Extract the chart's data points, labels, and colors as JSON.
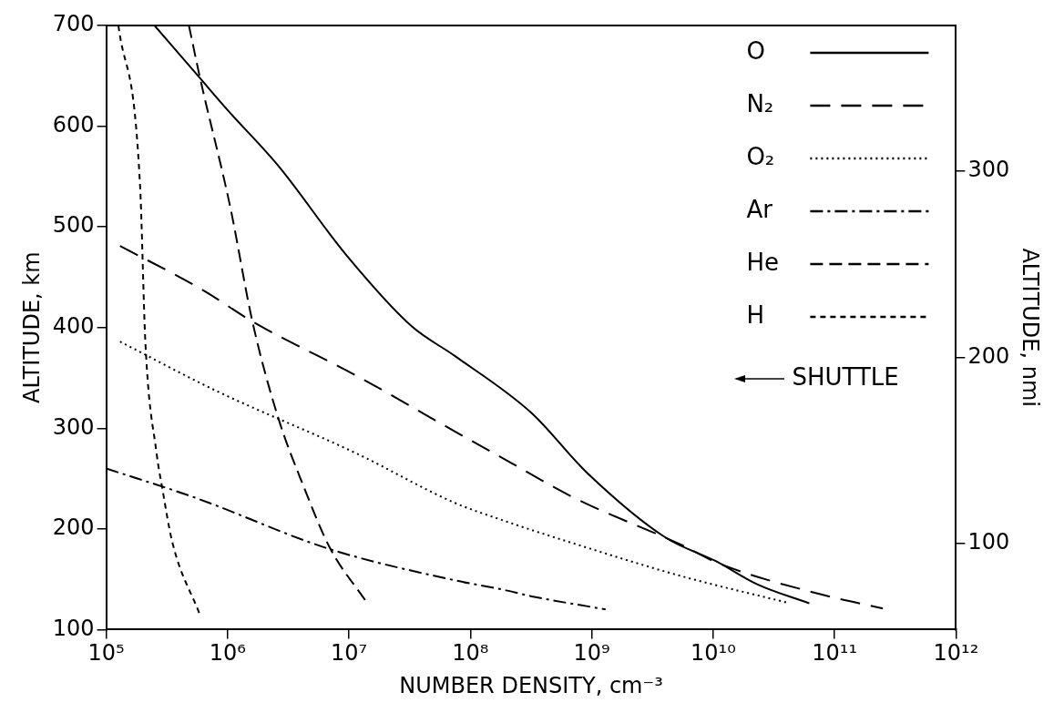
{
  "chart_data": {
    "type": "line",
    "xlabel": "NUMBER DENSITY, cm⁻³",
    "ylabel": "ALTITUDE, km",
    "y2label": "ALTITUDE, nmi",
    "log": "x",
    "grid": false,
    "legend": "top right",
    "marker": "none",
    "xlim": [
      100000,
      1000000000000
    ],
    "xticks": [
      {
        "value": 100000,
        "label": "10⁵"
      },
      {
        "value": 1000000,
        "label": "10⁶"
      },
      {
        "value": 10000000,
        "label": "10⁷"
      },
      {
        "value": 100000000,
        "label": "10⁸"
      },
      {
        "value": 1000000000,
        "label": "10⁹"
      },
      {
        "value": 10000000000,
        "label": "10¹⁰"
      },
      {
        "value": 100000000000,
        "label": "10¹¹"
      },
      {
        "value": 1000000000000,
        "label": "10¹²"
      }
    ],
    "ylim": [
      100,
      700
    ],
    "yticks": [
      100,
      200,
      300,
      400,
      500,
      600,
      700
    ],
    "y2lim": [
      54,
      378
    ],
    "y2ticks": [
      100,
      200,
      300
    ],
    "series": [
      {
        "name": "O",
        "color": "#000000",
        "line_style": "solid",
        "x": [
          250000,
          580000,
          1000000,
          2600000,
          9500000,
          33000000,
          74000000,
          320000000,
          910000000,
          4100000000,
          10500000000,
          23000000000,
          62000000000
        ],
        "values": [
          700,
          649,
          616,
          561,
          472,
          401,
          372,
          315,
          256,
          191,
          168,
          145,
          126
        ]
      },
      {
        "name": "N₂",
        "color": "#000000",
        "line_style": "dashed",
        "x": [
          130000,
          630000,
          1600000,
          12000000,
          74000000,
          180000000,
          740000000,
          5500000000,
          11000000000,
          83000000000,
          250000000000
        ],
        "values": [
          481,
          437,
          406,
          351,
          297,
          271,
          230,
          184,
          166,
          134,
          121
        ]
      },
      {
        "name": "O₂",
        "color": "#000000",
        "line_style": "dotted",
        "x": [
          130000,
          810000,
          11500000,
          74000000,
          180000000,
          650000000,
          5500000000,
          40000000000
        ],
        "values": [
          386,
          337,
          275,
          226,
          209,
          187,
          153,
          127
        ]
      },
      {
        "name": "Ar",
        "color": "#000000",
        "line_style": "dashed",
        "x": [
          100000,
          540000,
          6900000,
          74000000,
          180000000,
          320000000,
          1300000000
        ],
        "values": [
          260,
          231,
          180,
          149,
          140,
          133,
          120
        ]
      },
      {
        "name": "He",
        "color": "#000000",
        "line_style": "dashed",
        "x": [
          480000,
          590000,
          1050000,
          1600000,
          2600000,
          4300000,
          6900000,
          14000000
        ],
        "values": [
          700,
          649,
          520,
          406,
          311,
          240,
          182,
          127
        ]
      },
      {
        "name": "H",
        "color": "#000000",
        "line_style": "dashed",
        "x": [
          126000,
          190000,
          210000,
          260000,
          290000,
          350000,
          590000
        ],
        "values": [
          700,
          541,
          386,
          275,
          240,
          187,
          115
        ]
      }
    ],
    "annotations": [
      "SHUTTLE"
    ]
  }
}
